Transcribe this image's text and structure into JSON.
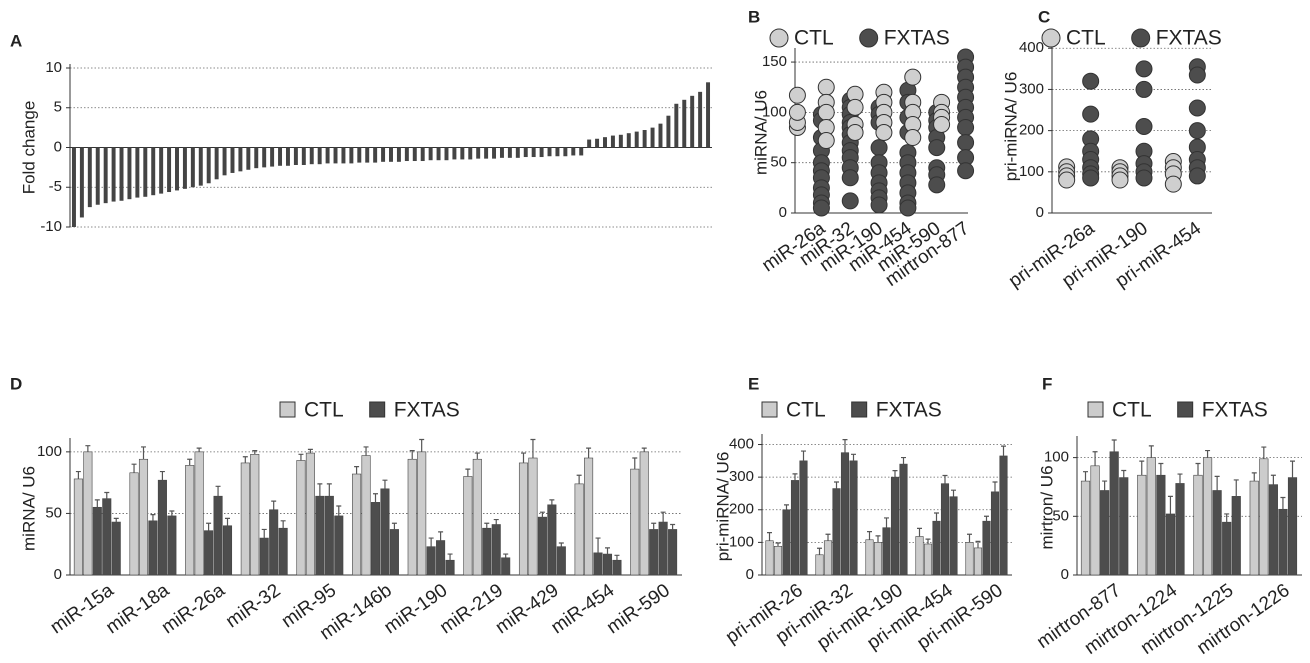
{
  "chart_data": [
    {
      "type": "bar",
      "panel": "A",
      "ylabel": "Fold change",
      "color": "#444444",
      "categories": [
        null,
        null,
        null,
        null,
        null,
        null,
        null,
        null,
        null,
        null,
        null,
        null,
        null,
        null,
        null,
        null,
        null,
        null,
        null,
        null,
        null,
        null,
        null,
        null,
        null,
        null,
        null,
        null,
        null,
        null,
        null,
        null,
        null,
        null,
        null,
        null,
        null,
        null,
        null,
        null,
        null,
        null,
        null,
        null,
        null,
        null,
        null,
        null,
        null,
        null,
        null,
        null,
        null,
        null,
        null,
        null,
        null,
        null,
        null,
        null,
        null,
        null,
        null,
        null,
        null,
        null,
        null,
        null,
        null,
        null,
        null,
        null,
        null,
        null,
        null,
        null,
        null,
        null,
        null,
        null,
        null
      ],
      "values": [
        -10,
        -8.8,
        -7.5,
        -7.2,
        -7,
        -6.8,
        -6.7,
        -6.5,
        -6.3,
        -6.2,
        -6,
        -5.8,
        -5.6,
        -5.4,
        -5.2,
        -5,
        -4.8,
        -4.5,
        -4,
        -3.5,
        -3.2,
        -3,
        -2.8,
        -2.6,
        -2.5,
        -2.4,
        -2.3,
        -2.3,
        -2.2,
        -2.2,
        -2.1,
        -2.1,
        -2,
        -2,
        -2,
        -2,
        -1.9,
        -1.9,
        -1.9,
        -1.8,
        -1.8,
        -1.8,
        -1.7,
        -1.7,
        -1.7,
        -1.6,
        -1.6,
        -1.6,
        -1.5,
        -1.5,
        -1.5,
        -1.4,
        -1.4,
        -1.4,
        -1.3,
        -1.3,
        -1.3,
        -1.2,
        -1.2,
        -1.2,
        -1.1,
        -1.1,
        -1.1,
        -1,
        -1,
        1,
        1.1,
        1.3,
        1.5,
        1.6,
        1.8,
        2,
        2.2,
        2.5,
        3,
        4,
        5.5,
        6,
        6.5,
        7,
        8.2
      ],
      "ylim": [
        -10,
        10
      ],
      "yticks": [
        -10,
        -5,
        0,
        5,
        10
      ],
      "grid": true
    },
    {
      "type": "strip",
      "panel": "B",
      "ylabel": "miRNA/ U6",
      "categories": [
        "miR-26a",
        "miR-32",
        "miR-190",
        "miR-454",
        "miR-590",
        "mirtron-877"
      ],
      "series": [
        {
          "name": "CTL",
          "color": "#cfcfcf",
          "values": [
            [
              85,
              90,
              100,
              117
            ],
            [
              125,
              110,
              100,
              85,
              72
            ],
            [
              118,
              105,
              88,
              80
            ],
            [
              120,
              110,
              100,
              90,
              80
            ],
            [
              135,
              110,
              100,
              88,
              75
            ],
            [
              110,
              100,
              95,
              88
            ]
          ]
        },
        {
          "name": "FXTAS",
          "color": "#4d4d4d",
          "values": [
            [
              98,
              92,
              75,
              62,
              50,
              42,
              35,
              25,
              18,
              10,
              5
            ],
            [
              112,
              105,
              98,
              90,
              85,
              78,
              70,
              62,
              55,
              45,
              35,
              12
            ],
            [
              105,
              98,
              90,
              65,
              50,
              40,
              30,
              22,
              15,
              8
            ],
            [
              122,
              110,
              95,
              80,
              60,
              50,
              40,
              30,
              20,
              10,
              5
            ],
            [
              100,
              92,
              85,
              75,
              65,
              45,
              38,
              28
            ],
            [
              155,
              145,
              135,
              125,
              115,
              105,
              95,
              85,
              70,
              55,
              42
            ]
          ]
        }
      ],
      "ylim": [
        0,
        160
      ],
      "yticks": [
        0,
        50,
        100,
        150
      ],
      "grid": true
    },
    {
      "type": "strip",
      "panel": "C",
      "ylabel": "pri-miRNA/ U6",
      "categories": [
        "pri-miR-26a",
        "pri-miR-190",
        "pri-miR-454"
      ],
      "series": [
        {
          "name": "CTL",
          "color": "#cfcfcf",
          "values": [
            [
              112,
              100,
              90,
              80
            ],
            [
              110,
              100,
              90,
              80
            ],
            [
              125,
              110,
              95,
              70
            ]
          ]
        },
        {
          "name": "FXTAS",
          "color": "#4d4d4d",
          "values": [
            [
              320,
              240,
              180,
              150,
              130,
              110,
              95,
              85
            ],
            [
              350,
              300,
              210,
              150,
              120,
              100,
              85
            ],
            [
              355,
              335,
              255,
              200,
              160,
              130,
              110,
              90
            ]
          ]
        }
      ],
      "ylim": [
        0,
        420
      ],
      "yticks": [
        0,
        100,
        200,
        300,
        400
      ],
      "grid": true
    },
    {
      "type": "groupbar",
      "panel": "D",
      "ylabel": "miRNA/ U6",
      "categories": [
        "miR-15a",
        "miR-18a",
        "miR-26a",
        "miR-32",
        "miR-95",
        "miR-146b",
        "miR-190",
        "miR-219",
        "miR-429",
        "miR-454",
        "miR-590"
      ],
      "series": [
        {
          "name": "CTL",
          "color": "#cccccc",
          "values": [
            [
              78,
              100
            ],
            [
              83,
              94
            ],
            [
              89,
              100
            ],
            [
              91,
              98
            ],
            [
              93,
              99
            ],
            [
              82,
              97
            ],
            [
              94,
              100
            ],
            [
              80,
              94
            ],
            [
              91,
              95
            ],
            [
              74,
              95
            ],
            [
              86,
              100
            ]
          ],
          "errors": [
            [
              6,
              5
            ],
            [
              7,
              10
            ],
            [
              5,
              3
            ],
            [
              5,
              3
            ],
            [
              5,
              3
            ],
            [
              6,
              7
            ],
            [
              7,
              10
            ],
            [
              6,
              5
            ],
            [
              8,
              15
            ],
            [
              7,
              8
            ],
            [
              9,
              3
            ]
          ]
        },
        {
          "name": "FXTAS",
          "color": "#4d4d4d",
          "values": [
            [
              55,
              62,
              43
            ],
            [
              44,
              77,
              48
            ],
            [
              36,
              64,
              40
            ],
            [
              30,
              53,
              38
            ],
            [
              64,
              64,
              48
            ],
            [
              59,
              70,
              37
            ],
            [
              23,
              28,
              12
            ],
            [
              38,
              41,
              14
            ],
            [
              47,
              57,
              23
            ],
            [
              18,
              17,
              12
            ],
            [
              37,
              43,
              37
            ]
          ],
          "errors": [
            [
              6,
              5,
              3
            ],
            [
              5,
              7,
              4
            ],
            [
              6,
              8,
              6
            ],
            [
              7,
              7,
              6
            ],
            [
              10,
              10,
              8
            ],
            [
              7,
              7,
              5
            ],
            [
              7,
              7,
              5
            ],
            [
              4,
              4,
              3
            ],
            [
              4,
              4,
              3
            ],
            [
              12,
              5,
              4
            ],
            [
              5,
              8,
              4
            ]
          ]
        }
      ],
      "ylim": [
        0,
        108
      ],
      "yticks": [
        0,
        50,
        100
      ],
      "grid": true
    },
    {
      "type": "groupbar",
      "panel": "E",
      "ylabel": "pri-miRNA/ U6",
      "categories": [
        "pri-miR-26",
        "pri-miR-32",
        "pri-miR-190",
        "pri-miR-454",
        "pri-miR-590"
      ],
      "series": [
        {
          "name": "CTL",
          "color": "#cccccc",
          "values": [
            [
              105,
              88
            ],
            [
              62,
              105
            ],
            [
              108,
              100
            ],
            [
              118,
              95
            ],
            [
              100,
              83
            ]
          ],
          "errors": [
            [
              25,
              10
            ],
            [
              20,
              20
            ],
            [
              25,
              20
            ],
            [
              25,
              15
            ],
            [
              25,
              20
            ]
          ]
        },
        {
          "name": "FXTAS",
          "color": "#4d4d4d",
          "values": [
            [
              200,
              290,
              350
            ],
            [
              265,
              375,
              350
            ],
            [
              145,
              300,
              340
            ],
            [
              165,
              280,
              240
            ],
            [
              165,
              255,
              365
            ]
          ],
          "errors": [
            [
              15,
              20,
              30
            ],
            [
              20,
              40,
              20
            ],
            [
              30,
              20,
              20
            ],
            [
              25,
              25,
              20
            ],
            [
              15,
              30,
              30
            ]
          ]
        }
      ],
      "ylim": [
        0,
        420
      ],
      "yticks": [
        0,
        100,
        200,
        300,
        400
      ],
      "grid": true
    },
    {
      "type": "groupbar",
      "panel": "F",
      "ylabel": "mirtron/ U6",
      "categories": [
        "mirtron-877",
        "mirtron-1224",
        "mirtron-1225",
        "mirtron-1226"
      ],
      "series": [
        {
          "name": "CTL",
          "color": "#cccccc",
          "values": [
            [
              80,
              93
            ],
            [
              85,
              100
            ],
            [
              85,
              100
            ],
            [
              80,
              99
            ]
          ],
          "errors": [
            [
              8,
              12
            ],
            [
              12,
              10
            ],
            [
              10,
              6
            ],
            [
              7,
              10
            ]
          ]
        },
        {
          "name": "FXTAS",
          "color": "#4d4d4d",
          "values": [
            [
              72,
              105,
              83
            ],
            [
              85,
              52,
              78
            ],
            [
              72,
              45,
              67
            ],
            [
              77,
              56,
              83
            ]
          ],
          "errors": [
            [
              8,
              10,
              6
            ],
            [
              10,
              15,
              8
            ],
            [
              12,
              7,
              14
            ],
            [
              8,
              10,
              14
            ]
          ]
        }
      ],
      "ylim": [
        0,
        115
      ],
      "yticks": [
        0,
        50,
        100
      ],
      "grid": true
    }
  ]
}
